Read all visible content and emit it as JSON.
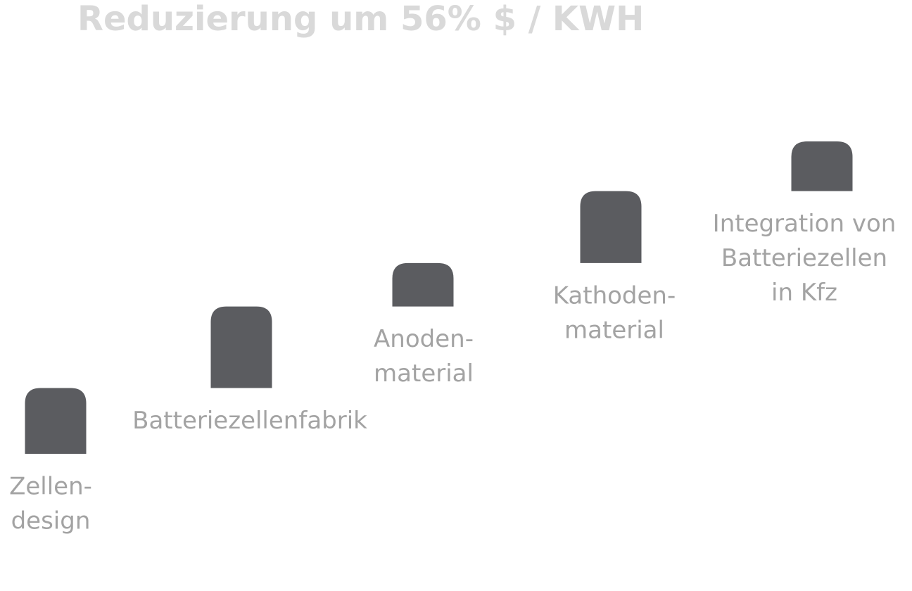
{
  "chart_data": {
    "type": "waterfall",
    "title": "Reduzierung um 56% $ / KWH",
    "categories": [
      [
        "Zellen-",
        "design"
      ],
      [
        "Batteriezellenfabrik"
      ],
      [
        "Anoden-",
        "material"
      ],
      [
        "Kathoden-",
        "material"
      ],
      [
        "Integration von",
        "Batteriezellen",
        "in Kfz"
      ]
    ],
    "values": [
      11.8,
      14.6,
      7.8,
      12.9,
      8.9
    ],
    "color": "#5b5c60",
    "ylim": [
      0,
      56
    ]
  }
}
